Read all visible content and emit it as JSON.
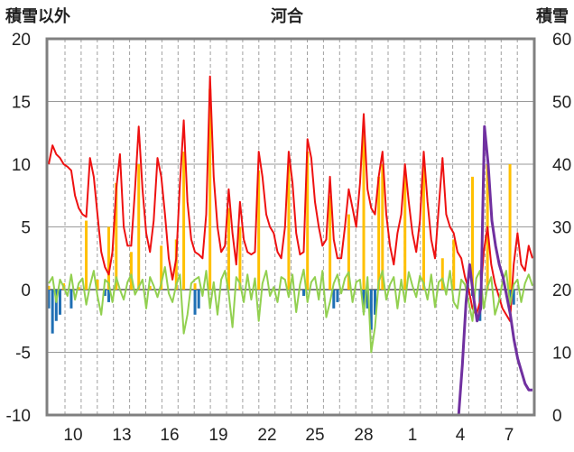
{
  "chart_data": {
    "type": "line",
    "title": "河合",
    "left_axis_title": "積雪以外",
    "right_axis_title": "積雪",
    "y_left": {
      "min": -10,
      "max": 20,
      "ticks": [
        "-10",
        "-5",
        "0",
        "5",
        "10",
        "15",
        "20"
      ]
    },
    "y_right": {
      "min": 0,
      "max": 60,
      "ticks": [
        "0",
        "10",
        "20",
        "30",
        "40",
        "50",
        "60"
      ]
    },
    "x_ticks": [
      "10",
      "13",
      "16",
      "19",
      "22",
      "25",
      "28",
      "1",
      "4",
      "7"
    ],
    "grid": true,
    "colors": {
      "red_line": "#ee1111",
      "yellow_bars": "#ffc000",
      "blue_bars": "#1f6fb4",
      "green_line": "#92d050",
      "purple_line": "#7030a0",
      "frame": "#808080"
    },
    "series": [
      {
        "color": "red",
        "axis": "left",
        "values": [
          10.0,
          11.5,
          10.8,
          10.5,
          10.0,
          9.8,
          9.5,
          7.5,
          6.5,
          6.0,
          5.8,
          10.5,
          9.0,
          6.0,
          3.0,
          1.8,
          1.2,
          3.0,
          8.0,
          10.8,
          5.0,
          3.5,
          3.5,
          8.0,
          13.0,
          8.0,
          4.5,
          3.0,
          5.5,
          10.5,
          9.0,
          6.0,
          2.5,
          0.8,
          2.5,
          8.5,
          13.5,
          7.0,
          4.0,
          3.0,
          2.8,
          2.5,
          6.0,
          17.0,
          9.0,
          5.0,
          3.0,
          3.5,
          8.0,
          4.5,
          2.0,
          7.0,
          4.0,
          3.0,
          2.8,
          3.0,
          11.0,
          9.0,
          6.0,
          5.0,
          4.5,
          3.0,
          2.5,
          5.0,
          11.0,
          8.5,
          4.5,
          2.8,
          3.0,
          12.0,
          10.5,
          7.0,
          5.0,
          3.5,
          4.0,
          9.0,
          4.0,
          2.5,
          2.5,
          5.0,
          8.0,
          6.5,
          5.0,
          8.5,
          14.0,
          8.0,
          6.5,
          6.0,
          9.0,
          11.0,
          6.0,
          3.5,
          2.0,
          4.5,
          6.0,
          10.0,
          7.0,
          4.5,
          3.0,
          5.5,
          11.0,
          7.0,
          4.0,
          2.5,
          6.5,
          10.5,
          6.0,
          5.0,
          4.5,
          3.0,
          2.5,
          1.0,
          0.0,
          -1.5,
          -2.0,
          -1.0,
          3.0,
          5.0,
          2.0,
          0.5,
          -0.5,
          -1.5,
          -2.0,
          -2.5,
          2.0,
          4.5,
          2.0,
          1.5,
          3.5,
          2.5
        ]
      },
      {
        "color": "yellow",
        "axis": "left",
        "type": "bar",
        "values": [
          0.3,
          0.0,
          0.0,
          0.0,
          0.5,
          0.0,
          0.0,
          0.0,
          0.2,
          0.0,
          5.5,
          0.0,
          0.0,
          0.8,
          0.0,
          0.0,
          5.0,
          0.0,
          8.5,
          0.0,
          0.0,
          0.0,
          3.0,
          0.0,
          10.0,
          0.0,
          0.0,
          0.3,
          0.0,
          0.0,
          3.5,
          0.0,
          0.0,
          0.0,
          4.0,
          0.0,
          11.0,
          0.0,
          0.0,
          0.5,
          0.0,
          0.0,
          0.0,
          16.0,
          0.0,
          0.0,
          0.0,
          0.0,
          6.5,
          0.0,
          0.0,
          5.0,
          0.0,
          0.0,
          0.0,
          0.0,
          9.5,
          0.0,
          0.0,
          0.0,
          0.0,
          0.0,
          0.0,
          0.0,
          10.0,
          0.0,
          0.0,
          0.0,
          0.0,
          11.0,
          0.0,
          0.0,
          0.0,
          0.0,
          0.0,
          7.5,
          0.0,
          0.0,
          0.0,
          0.0,
          6.0,
          0.0,
          0.0,
          0.0,
          13.0,
          0.0,
          0.0,
          0.0,
          9.0,
          10.0,
          0.0,
          0.0,
          0.0,
          0.0,
          0.0,
          9.5,
          0.0,
          0.0,
          0.0,
          0.0,
          10.0,
          0.0,
          0.0,
          0.0,
          0.0,
          2.5,
          0.0,
          0.0,
          4.0,
          0.0,
          0.0,
          0.0,
          0.0,
          9.0,
          0.0,
          0.0,
          0.0,
          10.0,
          0.0,
          0.0,
          0.0,
          0.0,
          0.0,
          10.0,
          0.0,
          0.0,
          0.0,
          0.0,
          0.0,
          0.0
        ]
      },
      {
        "color": "blue",
        "axis": "left",
        "type": "bar",
        "values": [
          -1.5,
          -3.5,
          -2.5,
          -2.0,
          0.0,
          0.0,
          -1.5,
          0.0,
          0.0,
          0.0,
          0.0,
          0.0,
          0.0,
          0.0,
          0.0,
          -0.5,
          -1.0,
          0.0,
          0.0,
          0.0,
          0.0,
          0.0,
          0.0,
          0.0,
          0.0,
          0.0,
          0.0,
          0.0,
          0.0,
          0.0,
          0.0,
          0.0,
          0.0,
          0.0,
          0.0,
          0.0,
          0.0,
          0.0,
          0.0,
          -2.0,
          -1.5,
          0.0,
          0.0,
          0.0,
          0.0,
          0.0,
          0.0,
          0.0,
          0.0,
          0.0,
          0.0,
          0.0,
          0.0,
          0.0,
          0.0,
          0.0,
          0.0,
          0.0,
          0.0,
          0.0,
          0.0,
          0.0,
          0.0,
          0.0,
          0.0,
          0.0,
          0.0,
          0.0,
          -0.5,
          0.0,
          0.0,
          0.0,
          0.0,
          0.0,
          0.0,
          0.0,
          -1.5,
          -1.0,
          0.0,
          0.0,
          0.0,
          0.0,
          0.0,
          0.0,
          -1.8,
          -1.5,
          -3.2,
          -2.0,
          0.0,
          0.0,
          0.0,
          0.0,
          0.0,
          0.0,
          0.0,
          0.0,
          0.0,
          0.0,
          0.0,
          0.0,
          0.0,
          0.0,
          0.0,
          0.0,
          0.0,
          0.0,
          0.0,
          0.0,
          0.0,
          0.0,
          0.0,
          0.0,
          0.0,
          -0.5,
          0.0,
          -2.5,
          0.0,
          0.0,
          0.0,
          0.0,
          0.0,
          0.0,
          0.0,
          -1.5,
          -1.2,
          0.0,
          0.0,
          0.0,
          0.0,
          0.0
        ]
      },
      {
        "color": "green",
        "axis": "left",
        "values": [
          0.5,
          1.0,
          -1.0,
          0.8,
          0.2,
          -0.5,
          1.2,
          -0.8,
          0.5,
          0.9,
          -1.2,
          0.3,
          1.5,
          -0.5,
          -2.0,
          0.8,
          0.5,
          -1.0,
          1.0,
          0.0,
          -0.8,
          0.6,
          1.2,
          -0.4,
          0.2,
          0.8,
          -1.5,
          1.0,
          0.3,
          -0.6,
          0.5,
          1.8,
          -0.3,
          -1.0,
          0.4,
          1.2,
          -3.5,
          -2.0,
          0.5,
          0.8,
          1.0,
          -0.5,
          1.5,
          -1.5,
          0.6,
          -2.0,
          0.8,
          1.5,
          -0.3,
          -3.0,
          1.0,
          0.5,
          -1.0,
          1.2,
          -0.8,
          0.9,
          -2.5,
          0.5,
          1.5,
          -0.5,
          0.2,
          -1.0,
          1.0,
          0.8,
          -0.6,
          1.2,
          -1.8,
          0.4,
          1.6,
          -1.0,
          0.6,
          1.0,
          -0.8,
          1.5,
          -2.2,
          -1.0,
          0.5,
          1.2,
          -0.3,
          0.9,
          1.4,
          -1.0,
          0.6,
          0.8,
          -2.0,
          1.0,
          -5.0,
          -3.0,
          0.6,
          1.5,
          -0.8,
          0.4,
          1.0,
          -1.5,
          0.8,
          -1.0,
          1.4,
          0.3,
          -0.6,
          1.1,
          0.5,
          -0.8,
          1.2,
          -1.4,
          0.6,
          0.9,
          -0.4,
          1.5,
          -1.0,
          -1.5,
          0.8,
          0.4,
          -1.0,
          -2.5,
          0.9,
          1.5,
          -1.5,
          0.2,
          1.0,
          -2.0,
          -1.0,
          0.6,
          1.5,
          -1.2,
          0.4,
          0.8,
          -1.0,
          0.5,
          1.2,
          0.3
        ]
      },
      {
        "color": "purple",
        "axis": "right",
        "values": [
          0,
          0,
          0,
          0,
          0,
          0,
          0,
          0,
          0,
          0,
          0,
          0,
          0,
          0,
          0,
          0,
          0,
          0,
          0,
          0,
          0,
          0,
          0,
          0,
          0,
          0,
          0,
          0,
          0,
          0,
          0,
          0,
          0,
          0,
          0,
          0,
          0,
          0,
          0,
          0,
          0,
          0,
          0,
          0,
          0,
          0,
          0,
          0,
          0,
          0,
          0,
          0,
          0,
          0,
          0,
          0,
          0,
          0,
          0,
          0,
          0,
          0,
          0,
          0,
          0,
          0,
          0,
          0,
          0,
          0,
          0,
          0,
          0,
          0,
          0,
          0,
          0,
          0,
          0,
          0,
          0,
          0,
          0,
          0,
          0,
          0,
          0,
          0,
          0,
          0,
          0,
          0,
          0,
          0,
          0,
          0,
          0,
          0,
          0,
          0,
          0,
          0,
          0,
          0,
          0,
          0,
          0,
          0,
          0,
          0,
          0,
          0,
          8,
          18,
          24,
          19,
          15,
          17,
          46,
          40,
          31,
          27,
          24,
          22,
          19,
          16,
          12,
          9,
          7,
          5,
          4,
          4
        ]
      }
    ]
  }
}
